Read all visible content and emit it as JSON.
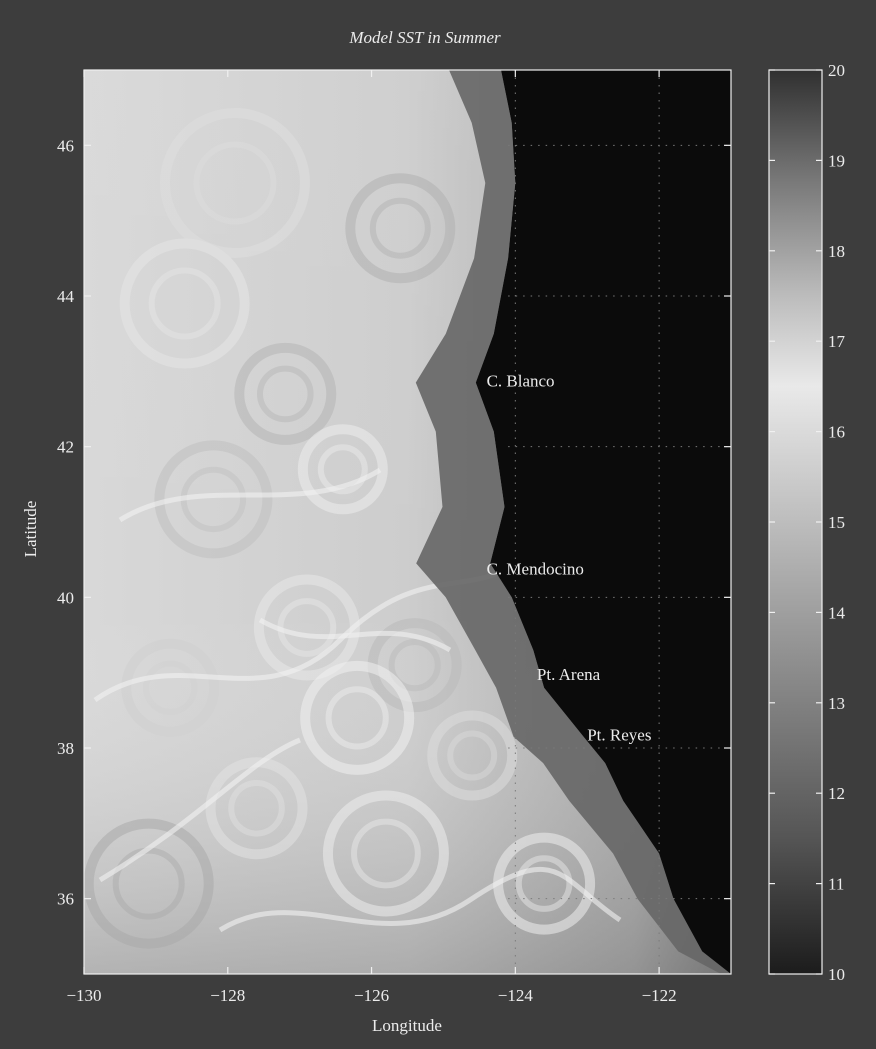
{
  "chart_data": {
    "type": "heatmap",
    "title": "Model SST in Summer",
    "xlabel": "Longitude",
    "ylabel": "Latitude",
    "xlim": [
      -130,
      -121
    ],
    "ylim": [
      35,
      47
    ],
    "xticks": [
      -130,
      -128,
      -126,
      -124,
      -122
    ],
    "yticks": [
      36,
      38,
      40,
      42,
      44,
      46
    ],
    "grid": "dotted, over land area only",
    "colorbar": {
      "range": [
        10,
        20
      ],
      "ticks": [
        10,
        11,
        12,
        13,
        14,
        15,
        16,
        17,
        18,
        19,
        20
      ],
      "colormap": "grayscale: dark at 10 and 20, lightest near 16.5"
    },
    "annotations": [
      {
        "text": "C. Blanco",
        "lon": -124.4,
        "lat": 42.8
      },
      {
        "text": "C. Mendocino",
        "lon": -124.4,
        "lat": 40.3
      },
      {
        "text": "Pt. Arena",
        "lon": -123.7,
        "lat": 38.9
      },
      {
        "text": "Pt. Reyes",
        "lon": -123.0,
        "lat": 38.1
      }
    ],
    "coastline": [
      [
        -124.2,
        47.0
      ],
      [
        -124.05,
        46.3
      ],
      [
        -124.0,
        45.5
      ],
      [
        -124.1,
        44.5
      ],
      [
        -124.3,
        43.5
      ],
      [
        -124.55,
        42.85
      ],
      [
        -124.3,
        42.2
      ],
      [
        -124.15,
        41.2
      ],
      [
        -124.35,
        40.45
      ],
      [
        -124.05,
        40.0
      ],
      [
        -123.75,
        39.3
      ],
      [
        -123.6,
        38.8
      ],
      [
        -123.05,
        38.15
      ],
      [
        -122.75,
        37.8
      ],
      [
        -122.5,
        37.3
      ],
      [
        -122.0,
        36.6
      ],
      [
        -121.8,
        36.0
      ],
      [
        -121.4,
        35.3
      ],
      [
        -121.0,
        35.0
      ]
    ],
    "land_color": "#0b0b0b",
    "nearshore_color": "#666666",
    "offshore_color": "#c9c9c9"
  }
}
